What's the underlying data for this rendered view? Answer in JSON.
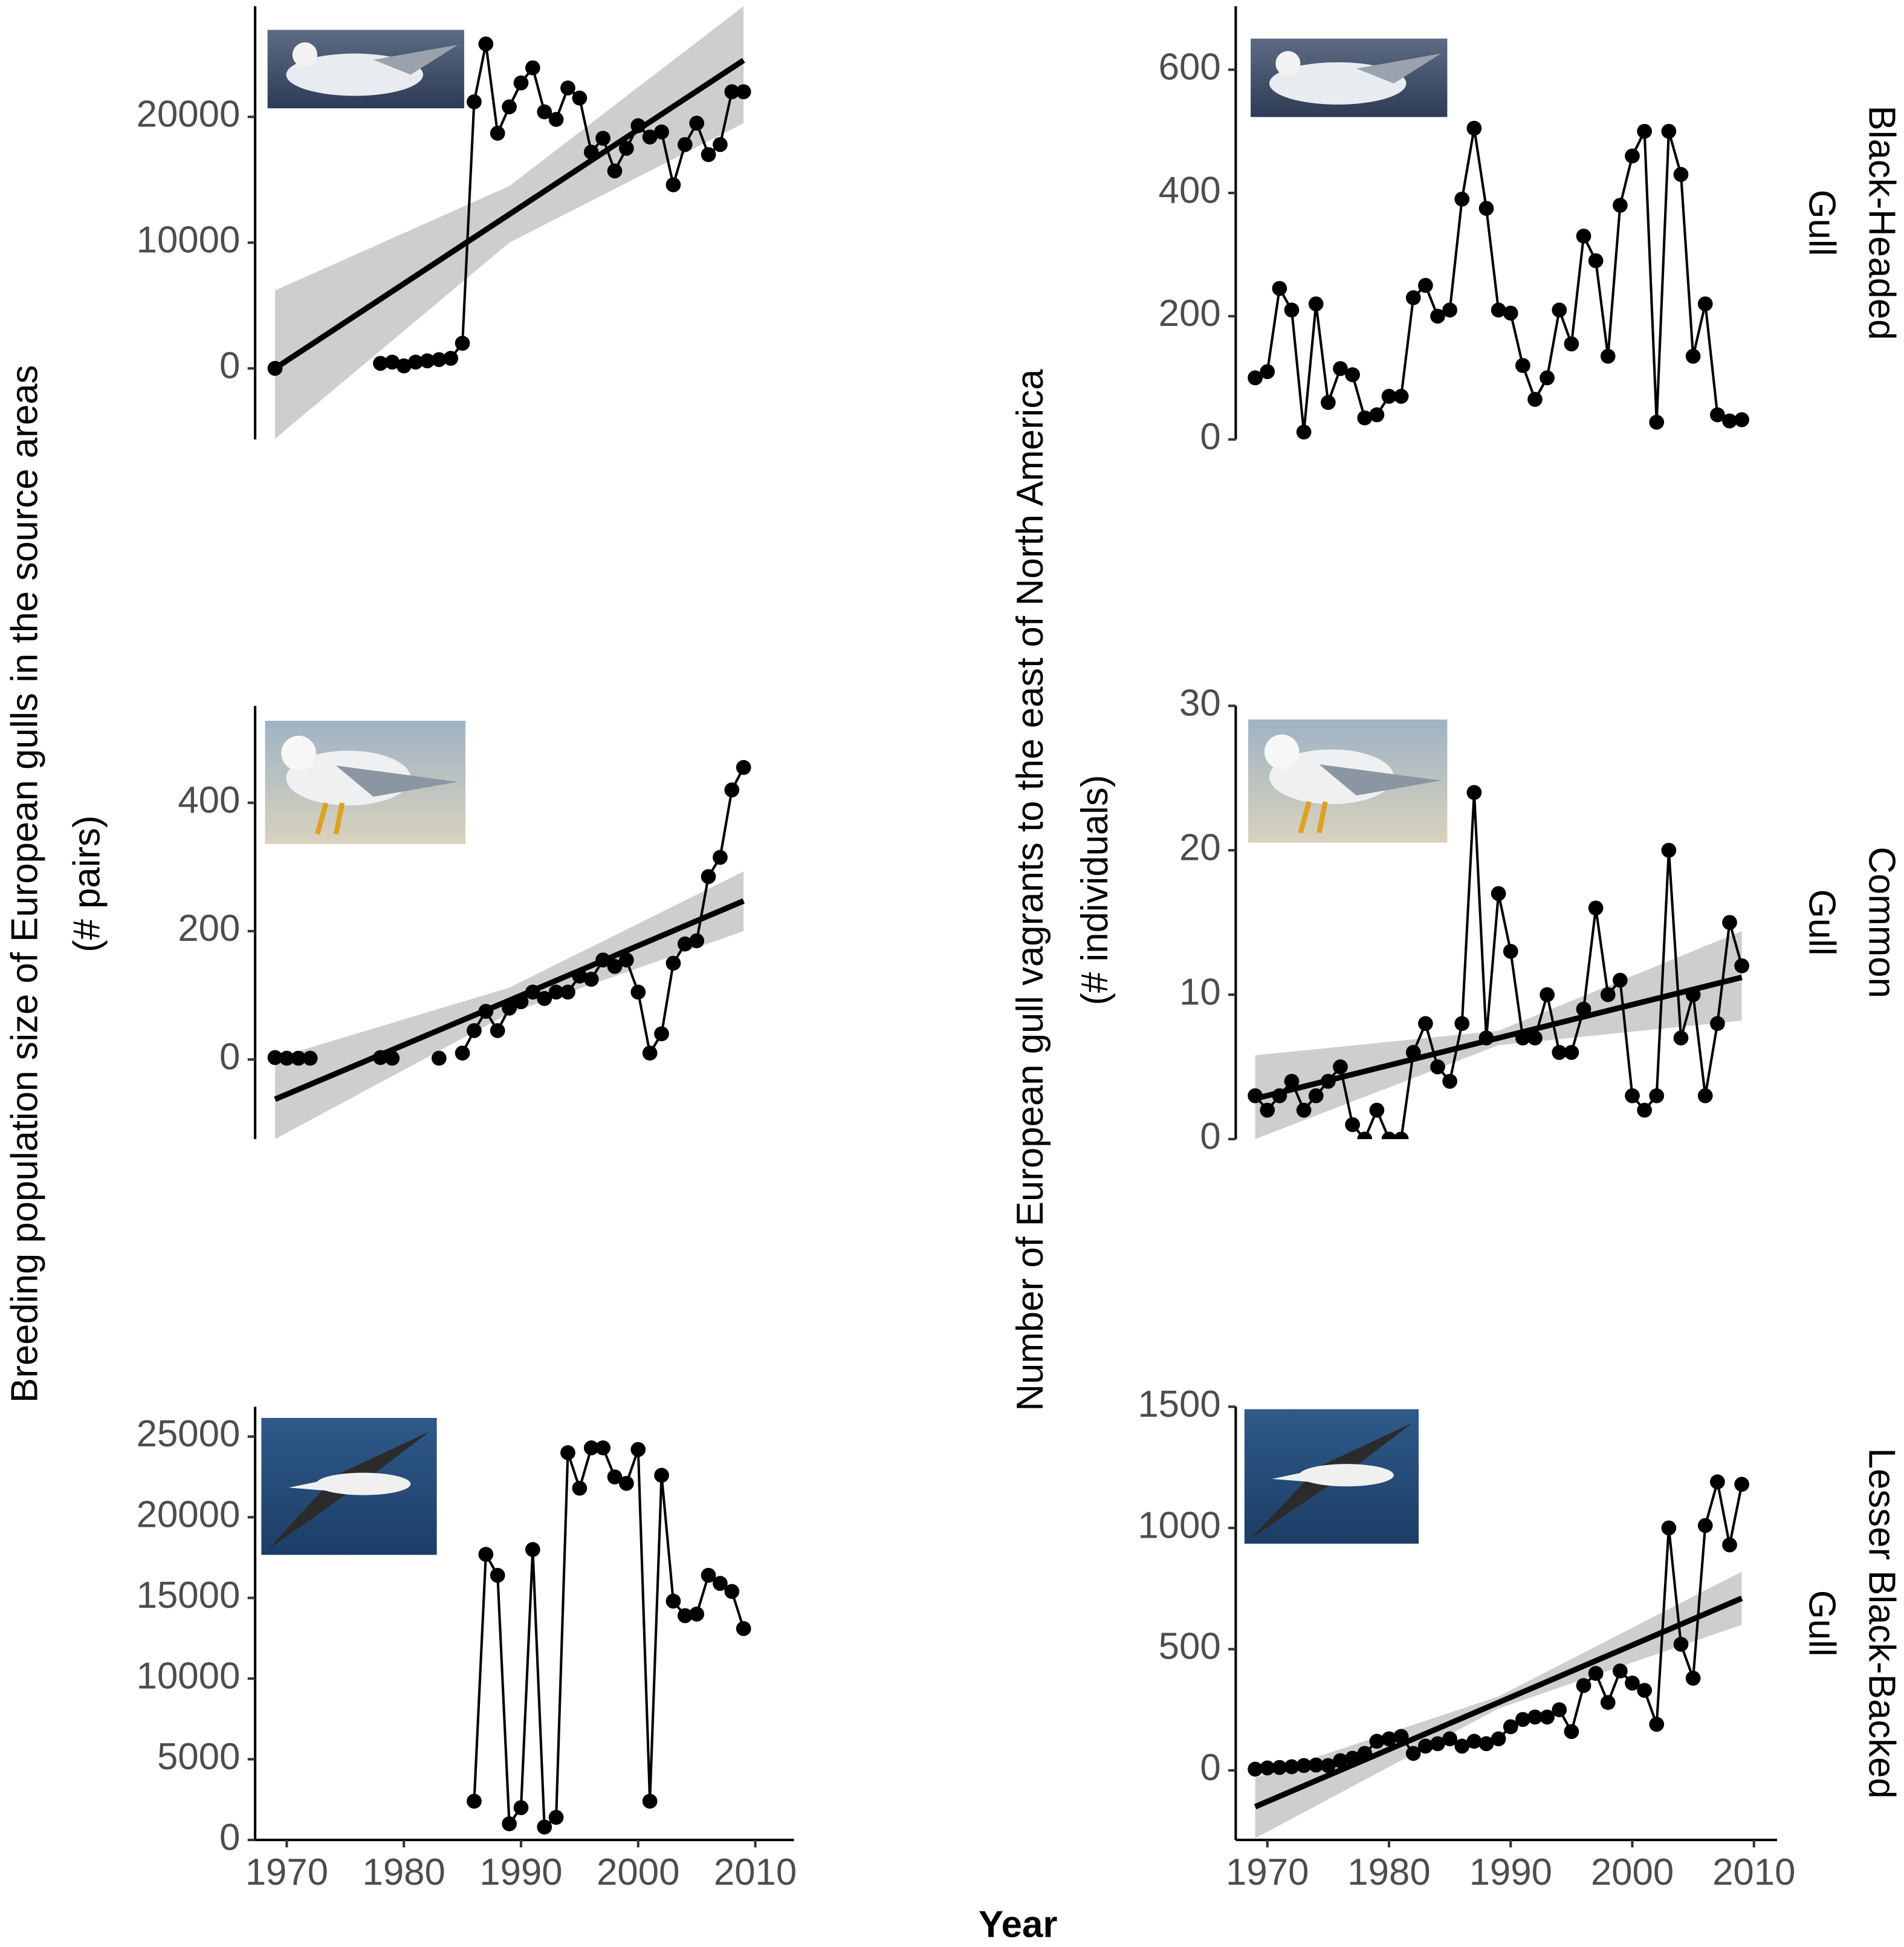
{
  "chart_data": [
    {
      "type": "line",
      "color": "#000000",
      "x": [
        1969,
        1970,
        1971,
        1972,
        1973,
        1974,
        1975,
        1976,
        1977,
        1978,
        1979,
        1980,
        1981,
        1982,
        1983,
        1984,
        1985,
        1986,
        1987,
        1988,
        1989,
        1990,
        1991,
        1992,
        1993,
        1994,
        1995,
        1996,
        1997,
        1998,
        1999,
        2000,
        2001,
        2002,
        2003,
        2004,
        2005,
        2006,
        2007,
        2008,
        2009
      ],
      "values": [
        0,
        null,
        null,
        null,
        null,
        null,
        null,
        null,
        null,
        400,
        500,
        200,
        500,
        600,
        700,
        800,
        2000,
        21200,
        25800,
        18700,
        20800,
        22700,
        23900,
        20400,
        19800,
        22300,
        21500,
        17200,
        18300,
        15700,
        17500,
        19300,
        18400,
        18800,
        14600,
        17800,
        19500,
        17000,
        17800,
        22000,
        22000
      ],
      "trend": {
        "x": [
          1969,
          1989,
          2009
        ],
        "y": [
          0,
          12250,
          24500
        ],
        "lower": [
          -5600,
          10000,
          19500
        ],
        "upper": [
          6200,
          14500,
          28800
        ]
      },
      "xlim": [
        1967.3,
        2013.3
      ],
      "ylim": [
        -5650,
        28800
      ],
      "yticks": [
        0,
        10000,
        20000
      ]
    },
    {
      "type": "line",
      "color": "#000000",
      "facet": [
        "Black-Headed",
        "Gull"
      ],
      "x": [
        1969,
        1970,
        1971,
        1972,
        1973,
        1974,
        1975,
        1976,
        1977,
        1978,
        1979,
        1980,
        1981,
        1982,
        1983,
        1984,
        1985,
        1986,
        1987,
        1988,
        1989,
        1990,
        1991,
        1992,
        1993,
        1994,
        1995,
        1996,
        1997,
        1998,
        1999,
        2000,
        2001,
        2002,
        2003,
        2004,
        2005,
        2006,
        2007,
        2008,
        2009
      ],
      "values": [
        100,
        110,
        245,
        210,
        12,
        220,
        60,
        115,
        105,
        35,
        40,
        70,
        70,
        230,
        250,
        200,
        210,
        390,
        505,
        375,
        210,
        205,
        120,
        65,
        100,
        210,
        155,
        330,
        290,
        135,
        380,
        460,
        500,
        28,
        500,
        430,
        135,
        220,
        40,
        30,
        32
      ],
      "xlim": [
        1967.4,
        2011.9
      ],
      "ylim": [
        0,
        703
      ],
      "yticks": [
        0,
        200,
        400,
        600
      ]
    },
    {
      "type": "line",
      "color": "#000000",
      "x": [
        1969,
        1970,
        1971,
        1972,
        1973,
        1974,
        1975,
        1976,
        1977,
        1978,
        1979,
        1980,
        1981,
        1982,
        1983,
        1984,
        1985,
        1986,
        1987,
        1988,
        1989,
        1990,
        1991,
        1992,
        1993,
        1994,
        1995,
        1996,
        1997,
        1998,
        1999,
        2000,
        2001,
        2002,
        2003,
        2004,
        2005,
        2006,
        2007,
        2008,
        2009
      ],
      "values": [
        3,
        2,
        2,
        2,
        null,
        null,
        null,
        null,
        null,
        3,
        2,
        null,
        null,
        null,
        2,
        null,
        10,
        45,
        75,
        45,
        80,
        90,
        105,
        95,
        105,
        105,
        130,
        125,
        155,
        145,
        155,
        105,
        10,
        40,
        150,
        180,
        185,
        285,
        315,
        420,
        455
      ],
      "trend": {
        "x": [
          1969,
          1989,
          2009
        ],
        "y": [
          -62,
          92,
          247
        ],
        "lower": [
          -124,
          72,
          200
        ],
        "upper": [
          2,
          112,
          293
        ]
      },
      "xlim": [
        1967.3,
        2013.3
      ],
      "ylim": [
        -124,
        551
      ],
      "yticks": [
        0,
        200,
        400
      ]
    },
    {
      "type": "line",
      "color": "#000000",
      "facet": [
        "Common",
        "Gull"
      ],
      "x": [
        1969,
        1970,
        1971,
        1972,
        1973,
        1974,
        1975,
        1976,
        1977,
        1978,
        1979,
        1980,
        1981,
        1982,
        1983,
        1984,
        1985,
        1986,
        1987,
        1988,
        1989,
        1990,
        1991,
        1992,
        1993,
        1994,
        1995,
        1996,
        1997,
        1998,
        1999,
        2000,
        2001,
        2002,
        2003,
        2004,
        2005,
        2006,
        2007,
        2008,
        2009
      ],
      "values": [
        3,
        2,
        3,
        4,
        2,
        3,
        4,
        5,
        1,
        0,
        2,
        0,
        0,
        6,
        8,
        5,
        4,
        8,
        24,
        7,
        17,
        13,
        7,
        7,
        10,
        6,
        6,
        9,
        16,
        10,
        11,
        3,
        2,
        3,
        20,
        7,
        10,
        3,
        8,
        15,
        12
      ],
      "trend": {
        "x": [
          1969,
          1989,
          2009
        ],
        "y": [
          2.8,
          7,
          11.2
        ],
        "lower": [
          0,
          6.5,
          8.2
        ],
        "upper": [
          5.8,
          7.5,
          14.4
        ]
      },
      "xlim": [
        1967.4,
        2011.9
      ],
      "ylim": [
        0,
        30
      ],
      "yticks": [
        0,
        10,
        20,
        30
      ]
    },
    {
      "type": "line",
      "color": "#000000",
      "x": [
        1969,
        1970,
        1971,
        1972,
        1973,
        1974,
        1975,
        1976,
        1977,
        1978,
        1979,
        1980,
        1981,
        1982,
        1983,
        1984,
        1985,
        1986,
        1987,
        1988,
        1989,
        1990,
        1991,
        1992,
        1993,
        1994,
        1995,
        1996,
        1997,
        1998,
        1999,
        2000,
        2001,
        2002,
        2003,
        2004,
        2005,
        2006,
        2007,
        2008,
        2009
      ],
      "values": [
        null,
        null,
        null,
        null,
        null,
        null,
        null,
        null,
        null,
        null,
        null,
        null,
        null,
        null,
        null,
        null,
        null,
        2400,
        17700,
        16400,
        1000,
        2000,
        18000,
        800,
        1400,
        24000,
        21800,
        24300,
        24300,
        22500,
        22100,
        24200,
        2400,
        22600,
        14800,
        13900,
        14000,
        16400,
        15900,
        15400,
        13100
      ],
      "xlim": [
        1967.3,
        2013.3
      ],
      "ylim": [
        0,
        26850
      ],
      "yticks": [
        0,
        5000,
        10000,
        15000,
        20000,
        25000
      ],
      "xticks": [
        1970,
        1980,
        1990,
        2000,
        2010
      ]
    },
    {
      "type": "line",
      "color": "#000000",
      "facet": [
        "Lesser Black-Backed",
        "Gull"
      ],
      "x": [
        1969,
        1970,
        1971,
        1972,
        1973,
        1974,
        1975,
        1976,
        1977,
        1978,
        1979,
        1980,
        1981,
        1982,
        1983,
        1984,
        1985,
        1986,
        1987,
        1988,
        1989,
        1990,
        1991,
        1992,
        1993,
        1994,
        1995,
        1996,
        1997,
        1998,
        1999,
        2000,
        2001,
        2002,
        2003,
        2004,
        2005,
        2006,
        2007,
        2008,
        2009
      ],
      "values": [
        5,
        10,
        12,
        15,
        20,
        22,
        20,
        40,
        50,
        70,
        120,
        130,
        140,
        70,
        100,
        110,
        130,
        100,
        120,
        110,
        130,
        180,
        210,
        220,
        220,
        250,
        160,
        350,
        400,
        280,
        410,
        360,
        330,
        190,
        1000,
        520,
        380,
        1010,
        1190,
        930,
        1180
      ],
      "trend": {
        "x": [
          1969,
          1989,
          2009
        ],
        "y": [
          -150,
          280,
          710
        ],
        "lower": [
          -280,
          255,
          600
        ],
        "upper": [
          -30,
          305,
          820
        ]
      },
      "xlim": [
        1967.4,
        2011.9
      ],
      "ylim": [
        -287,
        1500
      ],
      "yticks": [
        0,
        500,
        1000,
        1500
      ],
      "xticks": [
        1970,
        1980,
        1990,
        2000,
        2010
      ]
    }
  ],
  "y_label_left": [
    "Breeding population size of European gulls in the source areas",
    "(# pairs)"
  ],
  "y_label_right": [
    "Number of European gull vagrants to the east of North America",
    "(# individuals)"
  ],
  "x_label": "Year"
}
